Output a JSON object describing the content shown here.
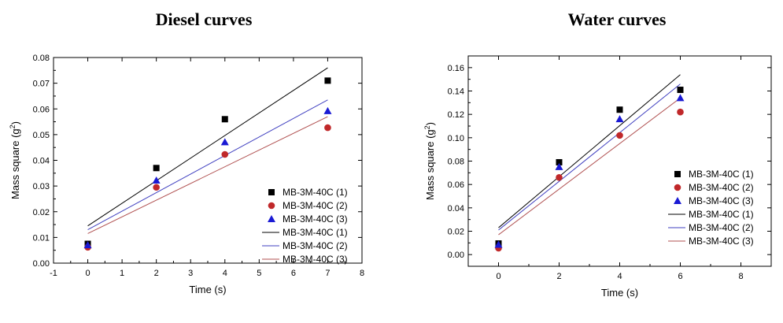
{
  "chart_data": [
    {
      "type": "scatter",
      "title": "Diesel curves",
      "xlabel": "Time (s)",
      "ylabel": "Mass square (g",
      "ylabel_sup": "2",
      "ylabel_tail": ")",
      "xlim": [
        -1,
        8
      ],
      "ylim": [
        0,
        0.08
      ],
      "xticks": [
        -1,
        0,
        1,
        2,
        3,
        4,
        5,
        6,
        7,
        8
      ],
      "yticks": [
        "0.00",
        "0.01",
        "0.02",
        "0.03",
        "0.04",
        "0.05",
        "0.06",
        "0.07",
        "0.08"
      ],
      "legend_position": "lower-right",
      "series": [
        {
          "name": "MB-3M-40C (1)",
          "marker": "square",
          "color": "#000000",
          "x": [
            0,
            2,
            4,
            7
          ],
          "y": [
            0.0075,
            0.037,
            0.056,
            0.071
          ]
        },
        {
          "name": "MB-3M-40C (2)",
          "marker": "circle",
          "color": "#c0282a",
          "x": [
            0,
            2,
            4,
            7
          ],
          "y": [
            0.0062,
            0.0295,
            0.0423,
            0.0527
          ]
        },
        {
          "name": "MB-3M-40C (3)",
          "marker": "triangle",
          "color": "#1a1ad4",
          "x": [
            0,
            2,
            4,
            7
          ],
          "y": [
            0.007,
            0.0322,
            0.0471,
            0.0592
          ]
        }
      ],
      "fits": [
        {
          "name": "MB-3M-40C (1)",
          "color": "#000000",
          "x": [
            0,
            7
          ],
          "y": [
            0.0145,
            0.076
          ]
        },
        {
          "name": "MB-3M-40C (2)",
          "color": "#4040c0",
          "x": [
            0,
            7
          ],
          "y": [
            0.013,
            0.0635
          ]
        },
        {
          "name": "MB-3M-40C (3)",
          "color": "#b05050",
          "x": [
            0,
            7
          ],
          "y": [
            0.0115,
            0.057
          ]
        }
      ]
    },
    {
      "type": "scatter",
      "title": "Water curves",
      "xlabel": "Time (s)",
      "ylabel": "Mass square (g",
      "ylabel_sup": "2",
      "ylabel_tail": ")",
      "xlim": [
        -1,
        9
      ],
      "ylim": [
        -0.01,
        0.17
      ],
      "xticks": [
        0,
        2,
        4,
        6,
        8
      ],
      "yticks": [
        "0.00",
        "0.02",
        "0.04",
        "0.06",
        "0.08",
        "0.10",
        "0.12",
        "0.14",
        "0.16"
      ],
      "legend_position": "lower-right",
      "series": [
        {
          "name": "MB-3M-40C (1)",
          "marker": "square",
          "color": "#000000",
          "x": [
            0,
            2,
            4,
            6
          ],
          "y": [
            0.0095,
            0.079,
            0.124,
            0.141
          ]
        },
        {
          "name": "MB-3M-40C (2)",
          "marker": "circle",
          "color": "#c0282a",
          "x": [
            0,
            2,
            4,
            6
          ],
          "y": [
            0.0055,
            0.066,
            0.102,
            0.122
          ]
        },
        {
          "name": "MB-3M-40C (3)",
          "marker": "triangle",
          "color": "#1a1ad4",
          "x": [
            0,
            2,
            4,
            6
          ],
          "y": [
            0.0085,
            0.075,
            0.116,
            0.134
          ]
        }
      ],
      "fits": [
        {
          "name": "MB-3M-40C (1)",
          "color": "#000000",
          "x": [
            0,
            6
          ],
          "y": [
            0.023,
            0.154
          ]
        },
        {
          "name": "MB-3M-40C (2)",
          "color": "#4040c0",
          "x": [
            0,
            6
          ],
          "y": [
            0.021,
            0.146
          ]
        },
        {
          "name": "MB-3M-40C (3)",
          "color": "#b05050",
          "x": [
            0,
            6
          ],
          "y": [
            0.017,
            0.134
          ]
        }
      ]
    }
  ]
}
